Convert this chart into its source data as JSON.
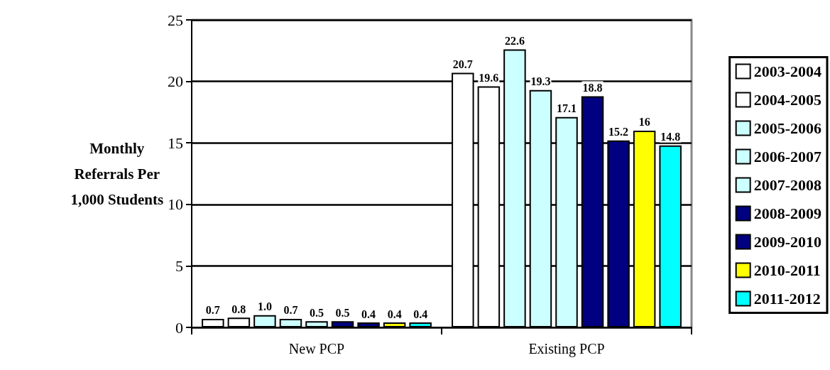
{
  "chart_data": {
    "type": "bar",
    "ylabel": "Monthly\nReferrals Per\n1,000 Students",
    "categories": [
      "New PCP",
      "Existing PCP"
    ],
    "series": [
      {
        "name": "2003-2004",
        "color": "#ffffff",
        "values": [
          0.7,
          20.7
        ],
        "value_labels": [
          "0.7",
          "20.7"
        ]
      },
      {
        "name": "2004-2005",
        "color": "#ffffff",
        "values": [
          0.8,
          19.6
        ],
        "value_labels": [
          "0.8",
          "19.6"
        ]
      },
      {
        "name": "2005-2006",
        "color": "#ccffff",
        "values": [
          1.0,
          22.6
        ],
        "value_labels": [
          "1.0",
          "22.6"
        ]
      },
      {
        "name": "2006-2007",
        "color": "#ccffff",
        "values": [
          0.7,
          19.3
        ],
        "value_labels": [
          "0.7",
          "19.3"
        ]
      },
      {
        "name": "2007-2008",
        "color": "#ccffff",
        "values": [
          0.5,
          17.1
        ],
        "value_labels": [
          "0.5",
          "17.1"
        ]
      },
      {
        "name": "2008-2009",
        "color": "#000080",
        "values": [
          0.5,
          18.8
        ],
        "value_labels": [
          "0.5",
          "18.8"
        ]
      },
      {
        "name": "2009-2010",
        "color": "#000080",
        "values": [
          0.4,
          15.2
        ],
        "value_labels": [
          "0.4",
          "15.2"
        ]
      },
      {
        "name": "2010-2011",
        "color": "#ffff00",
        "values": [
          0.4,
          16
        ],
        "value_labels": [
          "0.4",
          "16"
        ]
      },
      {
        "name": "2011-2012",
        "color": "#00ffff",
        "values": [
          0.4,
          14.8
        ],
        "value_labels": [
          "0.4",
          "14.8"
        ]
      }
    ],
    "ylim": [
      0,
      25
    ],
    "yticks": [
      0,
      5,
      10,
      15,
      20,
      25
    ],
    "grid": "y",
    "legend": "right"
  }
}
